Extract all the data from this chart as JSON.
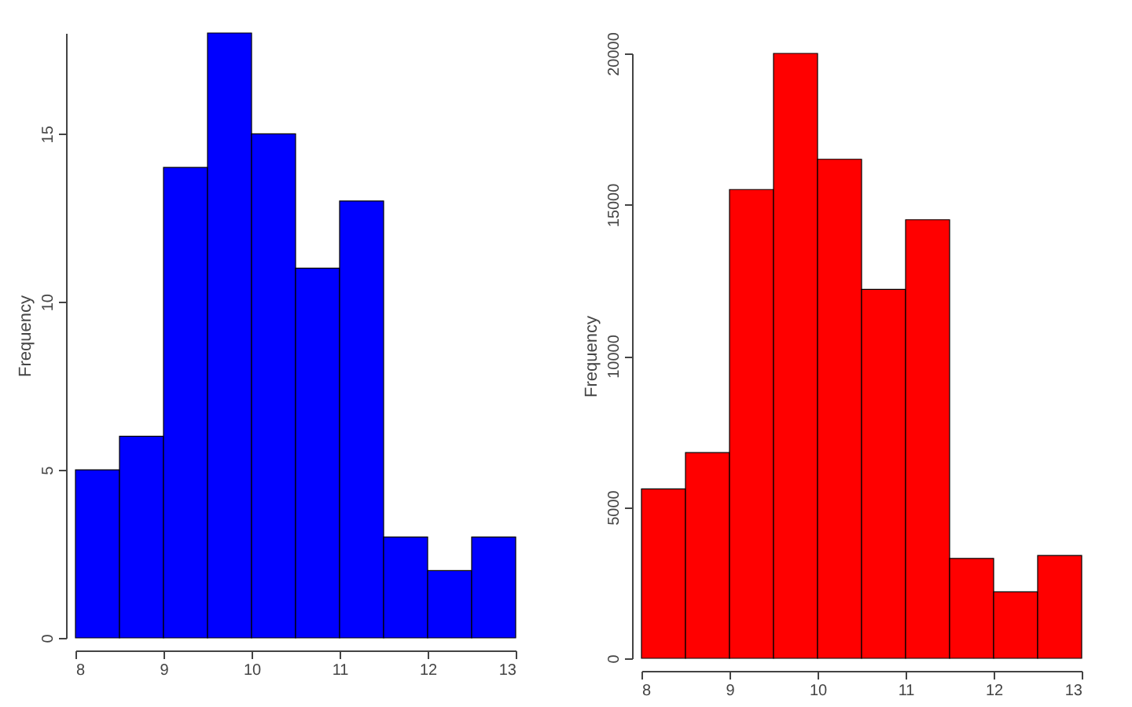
{
  "chart_data": [
    {
      "type": "histogram",
      "ylabel": "Frequency",
      "bins": [
        8,
        8.5,
        9,
        9.5,
        10,
        10.5,
        11,
        11.5,
        12,
        12.5,
        13
      ],
      "values": [
        5,
        6,
        14,
        18,
        15,
        11,
        13,
        3,
        2,
        3
      ],
      "color": "#0000ff",
      "xlim": [
        8,
        13
      ],
      "xticks": [
        8,
        9,
        10,
        11,
        12,
        13
      ],
      "ylim": [
        0,
        18
      ],
      "yticks": [
        0,
        5,
        10,
        15
      ],
      "grid": false
    },
    {
      "type": "histogram",
      "ylabel": "Frequency",
      "bins": [
        8,
        8.5,
        9,
        9.5,
        10,
        10.5,
        11,
        11.5,
        12,
        12.5,
        13
      ],
      "values": [
        5600,
        6800,
        15500,
        20000,
        16500,
        12200,
        14500,
        3300,
        2200,
        3400
      ],
      "color": "#ff0000",
      "xlim": [
        8,
        13
      ],
      "xticks": [
        8,
        9,
        10,
        11,
        12,
        13
      ],
      "ylim": [
        0,
        20000
      ],
      "yticks": [
        0,
        5000,
        10000,
        15000,
        20000
      ],
      "grid": false
    }
  ]
}
